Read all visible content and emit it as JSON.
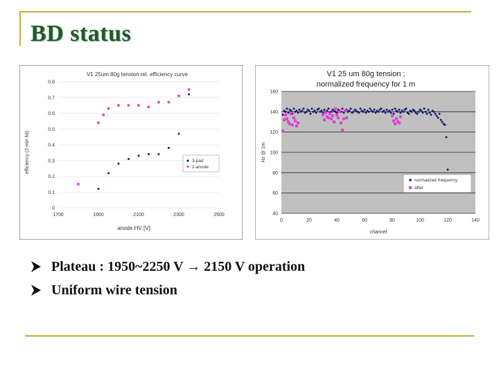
{
  "slide": {
    "title": "BD status",
    "bullets": [
      "Plateau : 1950~2250 V → 2150 V operation",
      "Uniform wire tension"
    ]
  },
  "colors": {
    "title": "#1f5a2a",
    "rule": "#c8ad3a",
    "series_navy": "#1c1c6e",
    "series_magenta": "#e23fd8",
    "plot_bg_right": "#c0c0c0"
  },
  "chart_data": [
    {
      "type": "scatter",
      "title": "V1 25um 80g tension rel. efficiency curve",
      "xlabel": "anode HV [V]",
      "ylabel": "efficiency (2-min hit)",
      "xlim": [
        1700,
        2500
      ],
      "ylim": [
        0,
        0.8
      ],
      "xticks": [
        "1700",
        "1900",
        "2100",
        "2300",
        "2500"
      ],
      "yticks": [
        "0",
        "0.1",
        "0.2",
        "0.3",
        "0.4",
        "0.5",
        "0.6",
        "0.7",
        "0.8"
      ],
      "grid": true,
      "legend": "right",
      "series": [
        {
          "name": "3-pad",
          "color": "#1c1c6e",
          "x": [
            1900,
            1950,
            2000,
            2050,
            2100,
            2150,
            2200,
            2250,
            2300,
            2350
          ],
          "y": [
            0.12,
            0.22,
            0.28,
            0.31,
            0.33,
            0.34,
            0.34,
            0.38,
            0.47,
            0.72
          ]
        },
        {
          "name": "2-anode",
          "color": "#e23fd8",
          "x": [
            1800,
            1900,
            1925,
            1950,
            2000,
            2050,
            2100,
            2150,
            2200,
            2250,
            2300,
            2350
          ],
          "y": [
            0.15,
            0.54,
            0.59,
            0.63,
            0.65,
            0.65,
            0.65,
            0.64,
            0.67,
            0.67,
            0.71,
            0.75
          ]
        }
      ]
    },
    {
      "type": "scatter",
      "title": "V1 25 um 80g tension ;",
      "subtitle": "normalized frequency for 1 m",
      "xlabel": "channel",
      "ylabel": "Hz @ 1m",
      "xlim": [
        0,
        140
      ],
      "ylim": [
        40,
        160
      ],
      "xticks": [
        "0",
        "20",
        "40",
        "60",
        "80",
        "100",
        "120",
        "140"
      ],
      "yticks": [
        "40",
        "60",
        "80",
        "100",
        "120",
        "140",
        "160"
      ],
      "grid": true,
      "legend": "bottom-right",
      "series": [
        {
          "name": "normalized frequency",
          "color": "#1c1c6e",
          "x": [
            1,
            2,
            3,
            4,
            5,
            6,
            7,
            8,
            9,
            10,
            11,
            12,
            13,
            14,
            15,
            16,
            17,
            18,
            19,
            20,
            21,
            22,
            23,
            24,
            25,
            26,
            27,
            28,
            29,
            30,
            31,
            32,
            33,
            34,
            35,
            36,
            37,
            38,
            39,
            40,
            41,
            42,
            43,
            44,
            45,
            46,
            47,
            48,
            49,
            50,
            51,
            52,
            53,
            54,
            55,
            56,
            57,
            58,
            59,
            60,
            61,
            62,
            63,
            64,
            65,
            66,
            67,
            68,
            69,
            70,
            71,
            72,
            73,
            74,
            75,
            76,
            77,
            78,
            79,
            80,
            81,
            82,
            83,
            84,
            85,
            86,
            87,
            88,
            89,
            90,
            91,
            92,
            93,
            94,
            95,
            96,
            97,
            98,
            99,
            100,
            101,
            102,
            103,
            104,
            105,
            106,
            107,
            108,
            109,
            110,
            111,
            112,
            113,
            114,
            115,
            116,
            117,
            118,
            119,
            120
          ],
          "y": [
            137,
            141,
            140,
            143,
            139,
            142,
            141,
            138,
            143,
            140,
            141,
            139,
            142,
            140,
            141,
            143,
            139,
            140,
            142,
            141,
            138,
            143,
            140,
            141,
            139,
            142,
            143,
            140,
            141,
            139,
            142,
            140,
            141,
            143,
            139,
            140,
            142,
            141,
            140,
            139,
            142,
            141,
            140,
            143,
            139,
            141,
            142,
            140,
            141,
            143,
            139,
            140,
            142,
            141,
            140,
            139,
            143,
            141,
            140,
            142,
            139,
            141,
            140,
            143,
            141,
            140,
            142,
            139,
            141,
            140,
            142,
            143,
            140,
            141,
            139,
            142,
            140,
            141,
            139,
            142,
            138,
            143,
            141,
            140,
            142,
            139,
            141,
            140,
            142,
            143,
            139,
            138,
            141,
            140,
            142,
            141,
            139,
            138,
            140,
            142,
            141,
            139,
            143,
            140,
            138,
            142,
            139,
            137,
            141,
            140,
            138,
            136,
            134,
            138,
            132,
            130,
            128,
            127,
            115,
            83
          ]
        },
        {
          "name": "after",
          "color": "#e23fd8",
          "x": [
            1,
            2,
            3,
            4,
            5,
            6,
            7,
            8,
            9,
            10,
            11,
            12,
            30,
            31,
            32,
            33,
            34,
            35,
            36,
            37,
            38,
            39,
            40,
            41,
            42,
            43,
            44,
            45,
            46,
            47,
            80,
            81,
            82,
            83,
            84,
            85,
            86
          ],
          "y": [
            121,
            132,
            137,
            133,
            130,
            128,
            138,
            127,
            134,
            131,
            126,
            129,
            137,
            132,
            139,
            135,
            134,
            138,
            133,
            136,
            130,
            143,
            137,
            134,
            140,
            129,
            122,
            133,
            141,
            134,
            136,
            131,
            128,
            133,
            130,
            129,
            135
          ]
        }
      ]
    }
  ]
}
